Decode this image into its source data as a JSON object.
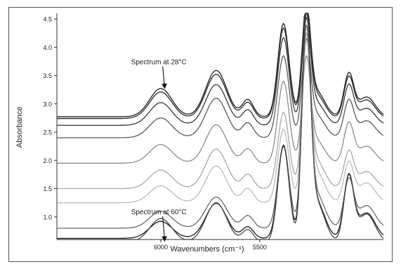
{
  "chart_data": {
    "type": "line",
    "title": "",
    "xlabel": "Wavenumbers (cm⁻¹)",
    "ylabel": "Absorbance",
    "xlim": [
      6525,
      4875
    ],
    "ylim": [
      0.6,
      4.6
    ],
    "y_ticks": [
      1.0,
      1.5,
      2.0,
      2.5,
      3.0,
      3.5,
      4.0,
      4.5
    ],
    "x_ticks": [
      6000,
      5500
    ],
    "grid": false,
    "series_colors": [
      "#1e1e1e",
      "#2a2a2a",
      "#383838",
      "#5a5a5a",
      "#8c8c8c",
      "#a8a8a8",
      "#bcbcbc",
      "#6a6a6a",
      "#1a1a1a",
      "#4a4a4a"
    ],
    "series": [
      {
        "peaks": [
          {
            "x": 6000,
            "h": 0.5,
            "w": 80
          },
          {
            "x": 5720,
            "h": 0.82,
            "w": 75
          },
          {
            "x": 5560,
            "h": 0.3,
            "w": 40
          },
          {
            "x": 5380,
            "h": 1.65,
            "w": 40
          },
          {
            "x": 5265,
            "h": 1.8,
            "w": 30
          },
          {
            "x": 5215,
            "h": 0.45,
            "w": 60
          },
          {
            "x": 5050,
            "h": 0.75,
            "w": 35
          },
          {
            "x": 4960,
            "h": 0.35,
            "w": 60
          }
        ],
        "base": 2.77,
        "slope": 0.0
      },
      {
        "peaks": [
          {
            "x": 6000,
            "h": 0.47,
            "w": 80
          },
          {
            "x": 5720,
            "h": 0.78,
            "w": 75
          },
          {
            "x": 5560,
            "h": 0.28,
            "w": 40
          },
          {
            "x": 5380,
            "h": 1.6,
            "w": 40
          },
          {
            "x": 5265,
            "h": 1.75,
            "w": 30
          },
          {
            "x": 5215,
            "h": 0.42,
            "w": 60
          },
          {
            "x": 5050,
            "h": 0.72,
            "w": 35
          },
          {
            "x": 4960,
            "h": 0.33,
            "w": 60
          }
        ],
        "base": 2.74,
        "slope": 0.0
      },
      {
        "peaks": [
          {
            "x": 6000,
            "h": 0.4,
            "w": 80
          },
          {
            "x": 5720,
            "h": 0.72,
            "w": 75
          },
          {
            "x": 5560,
            "h": 0.27,
            "w": 40
          },
          {
            "x": 5380,
            "h": 1.55,
            "w": 40
          },
          {
            "x": 5265,
            "h": 1.7,
            "w": 30
          },
          {
            "x": 5215,
            "h": 0.4,
            "w": 60
          },
          {
            "x": 5050,
            "h": 0.7,
            "w": 35
          },
          {
            "x": 4960,
            "h": 0.3,
            "w": 60
          }
        ],
        "base": 2.62,
        "slope": 0.0
      },
      {
        "peaks": [
          {
            "x": 6000,
            "h": 0.35,
            "w": 80
          },
          {
            "x": 5720,
            "h": 0.7,
            "w": 75
          },
          {
            "x": 5560,
            "h": 0.26,
            "w": 40
          },
          {
            "x": 5380,
            "h": 1.45,
            "w": 40
          },
          {
            "x": 5265,
            "h": 1.55,
            "w": 30
          },
          {
            "x": 5215,
            "h": 0.4,
            "w": 60
          },
          {
            "x": 5050,
            "h": 0.65,
            "w": 35
          },
          {
            "x": 4960,
            "h": 0.3,
            "w": 60
          }
        ],
        "base": 2.4,
        "slope": 0.0
      },
      {
        "peaks": [
          {
            "x": 6000,
            "h": 0.33,
            "w": 80
          },
          {
            "x": 5720,
            "h": 0.68,
            "w": 75
          },
          {
            "x": 5560,
            "h": 0.25,
            "w": 40
          },
          {
            "x": 5380,
            "h": 1.45,
            "w": 40
          },
          {
            "x": 5265,
            "h": 1.7,
            "w": 30
          },
          {
            "x": 5215,
            "h": 0.4,
            "w": 60
          },
          {
            "x": 5050,
            "h": 0.7,
            "w": 35
          },
          {
            "x": 4960,
            "h": 0.3,
            "w": 60
          }
        ],
        "base": 1.95,
        "slope": 0.0
      },
      {
        "peaks": [
          {
            "x": 6000,
            "h": 0.33,
            "w": 80
          },
          {
            "x": 5720,
            "h": 0.7,
            "w": 75
          },
          {
            "x": 5560,
            "h": 0.25,
            "w": 40
          },
          {
            "x": 5380,
            "h": 1.35,
            "w": 40
          },
          {
            "x": 5265,
            "h": 2.5,
            "w": 30
          },
          {
            "x": 5215,
            "h": 0.5,
            "w": 60
          },
          {
            "x": 5050,
            "h": 0.65,
            "w": 35
          },
          {
            "x": 4960,
            "h": 0.3,
            "w": 60
          }
        ],
        "base": 1.5,
        "slope": 0.0
      },
      {
        "peaks": [
          {
            "x": 6000,
            "h": 0.3,
            "w": 80
          },
          {
            "x": 5720,
            "h": 0.65,
            "w": 75
          },
          {
            "x": 5560,
            "h": 0.25,
            "w": 40
          },
          {
            "x": 5380,
            "h": 1.3,
            "w": 40
          },
          {
            "x": 5265,
            "h": 2.6,
            "w": 30
          },
          {
            "x": 5215,
            "h": 0.55,
            "w": 60
          },
          {
            "x": 5050,
            "h": 0.7,
            "w": 35
          },
          {
            "x": 4960,
            "h": 0.35,
            "w": 60
          }
        ],
        "base": 1.25,
        "slope": 0.0
      },
      {
        "peaks": [
          {
            "x": 6000,
            "h": 0.3,
            "w": 80
          },
          {
            "x": 5720,
            "h": 0.55,
            "w": 75
          },
          {
            "x": 5560,
            "h": 0.22,
            "w": 40
          },
          {
            "x": 5380,
            "h": 1.45,
            "w": 40
          },
          {
            "x": 5265,
            "h": 3.3,
            "w": 30
          },
          {
            "x": 5215,
            "h": 0.6,
            "w": 60
          },
          {
            "x": 5050,
            "h": 0.85,
            "w": 35
          },
          {
            "x": 4960,
            "h": 0.4,
            "w": 60
          }
        ],
        "base": 0.8,
        "slope": 0.0
      },
      {
        "peaks": [
          {
            "x": 6000,
            "h": 0.3,
            "w": 80
          },
          {
            "x": 5720,
            "h": 0.62,
            "w": 75
          },
          {
            "x": 5560,
            "h": 0.2,
            "w": 40
          },
          {
            "x": 5380,
            "h": 1.65,
            "w": 40
          },
          {
            "x": 5265,
            "h": 3.7,
            "w": 30
          },
          {
            "x": 5215,
            "h": 0.65,
            "w": 60
          },
          {
            "x": 5050,
            "h": 1.1,
            "w": 35
          },
          {
            "x": 4960,
            "h": 0.45,
            "w": 60
          }
        ],
        "base": 0.62,
        "slope": 0.0
      },
      {
        "peaks": [
          {
            "x": 6000,
            "h": 0.42,
            "w": 80
          },
          {
            "x": 5720,
            "h": 0.7,
            "w": 75
          },
          {
            "x": 5560,
            "h": 0.22,
            "w": 40
          },
          {
            "x": 5380,
            "h": 1.7,
            "w": 40
          },
          {
            "x": 5265,
            "h": 3.8,
            "w": 30
          },
          {
            "x": 5215,
            "h": 0.7,
            "w": 60
          },
          {
            "x": 5050,
            "h": 1.15,
            "w": 35
          },
          {
            "x": 4960,
            "h": 0.5,
            "w": 60
          }
        ],
        "base": 0.55,
        "slope": 0.0
      }
    ],
    "annotations": [
      {
        "text": "Spectrum at 28°C",
        "arrow_x": 5980,
        "arrow_y": 3.25,
        "label_x": 6150,
        "label_y": 3.7
      },
      {
        "text": "Spectrum at 60°C",
        "arrow_x": 5980,
        "arrow_y": 0.55,
        "label_x": 6150,
        "label_y": 1.05
      }
    ]
  }
}
